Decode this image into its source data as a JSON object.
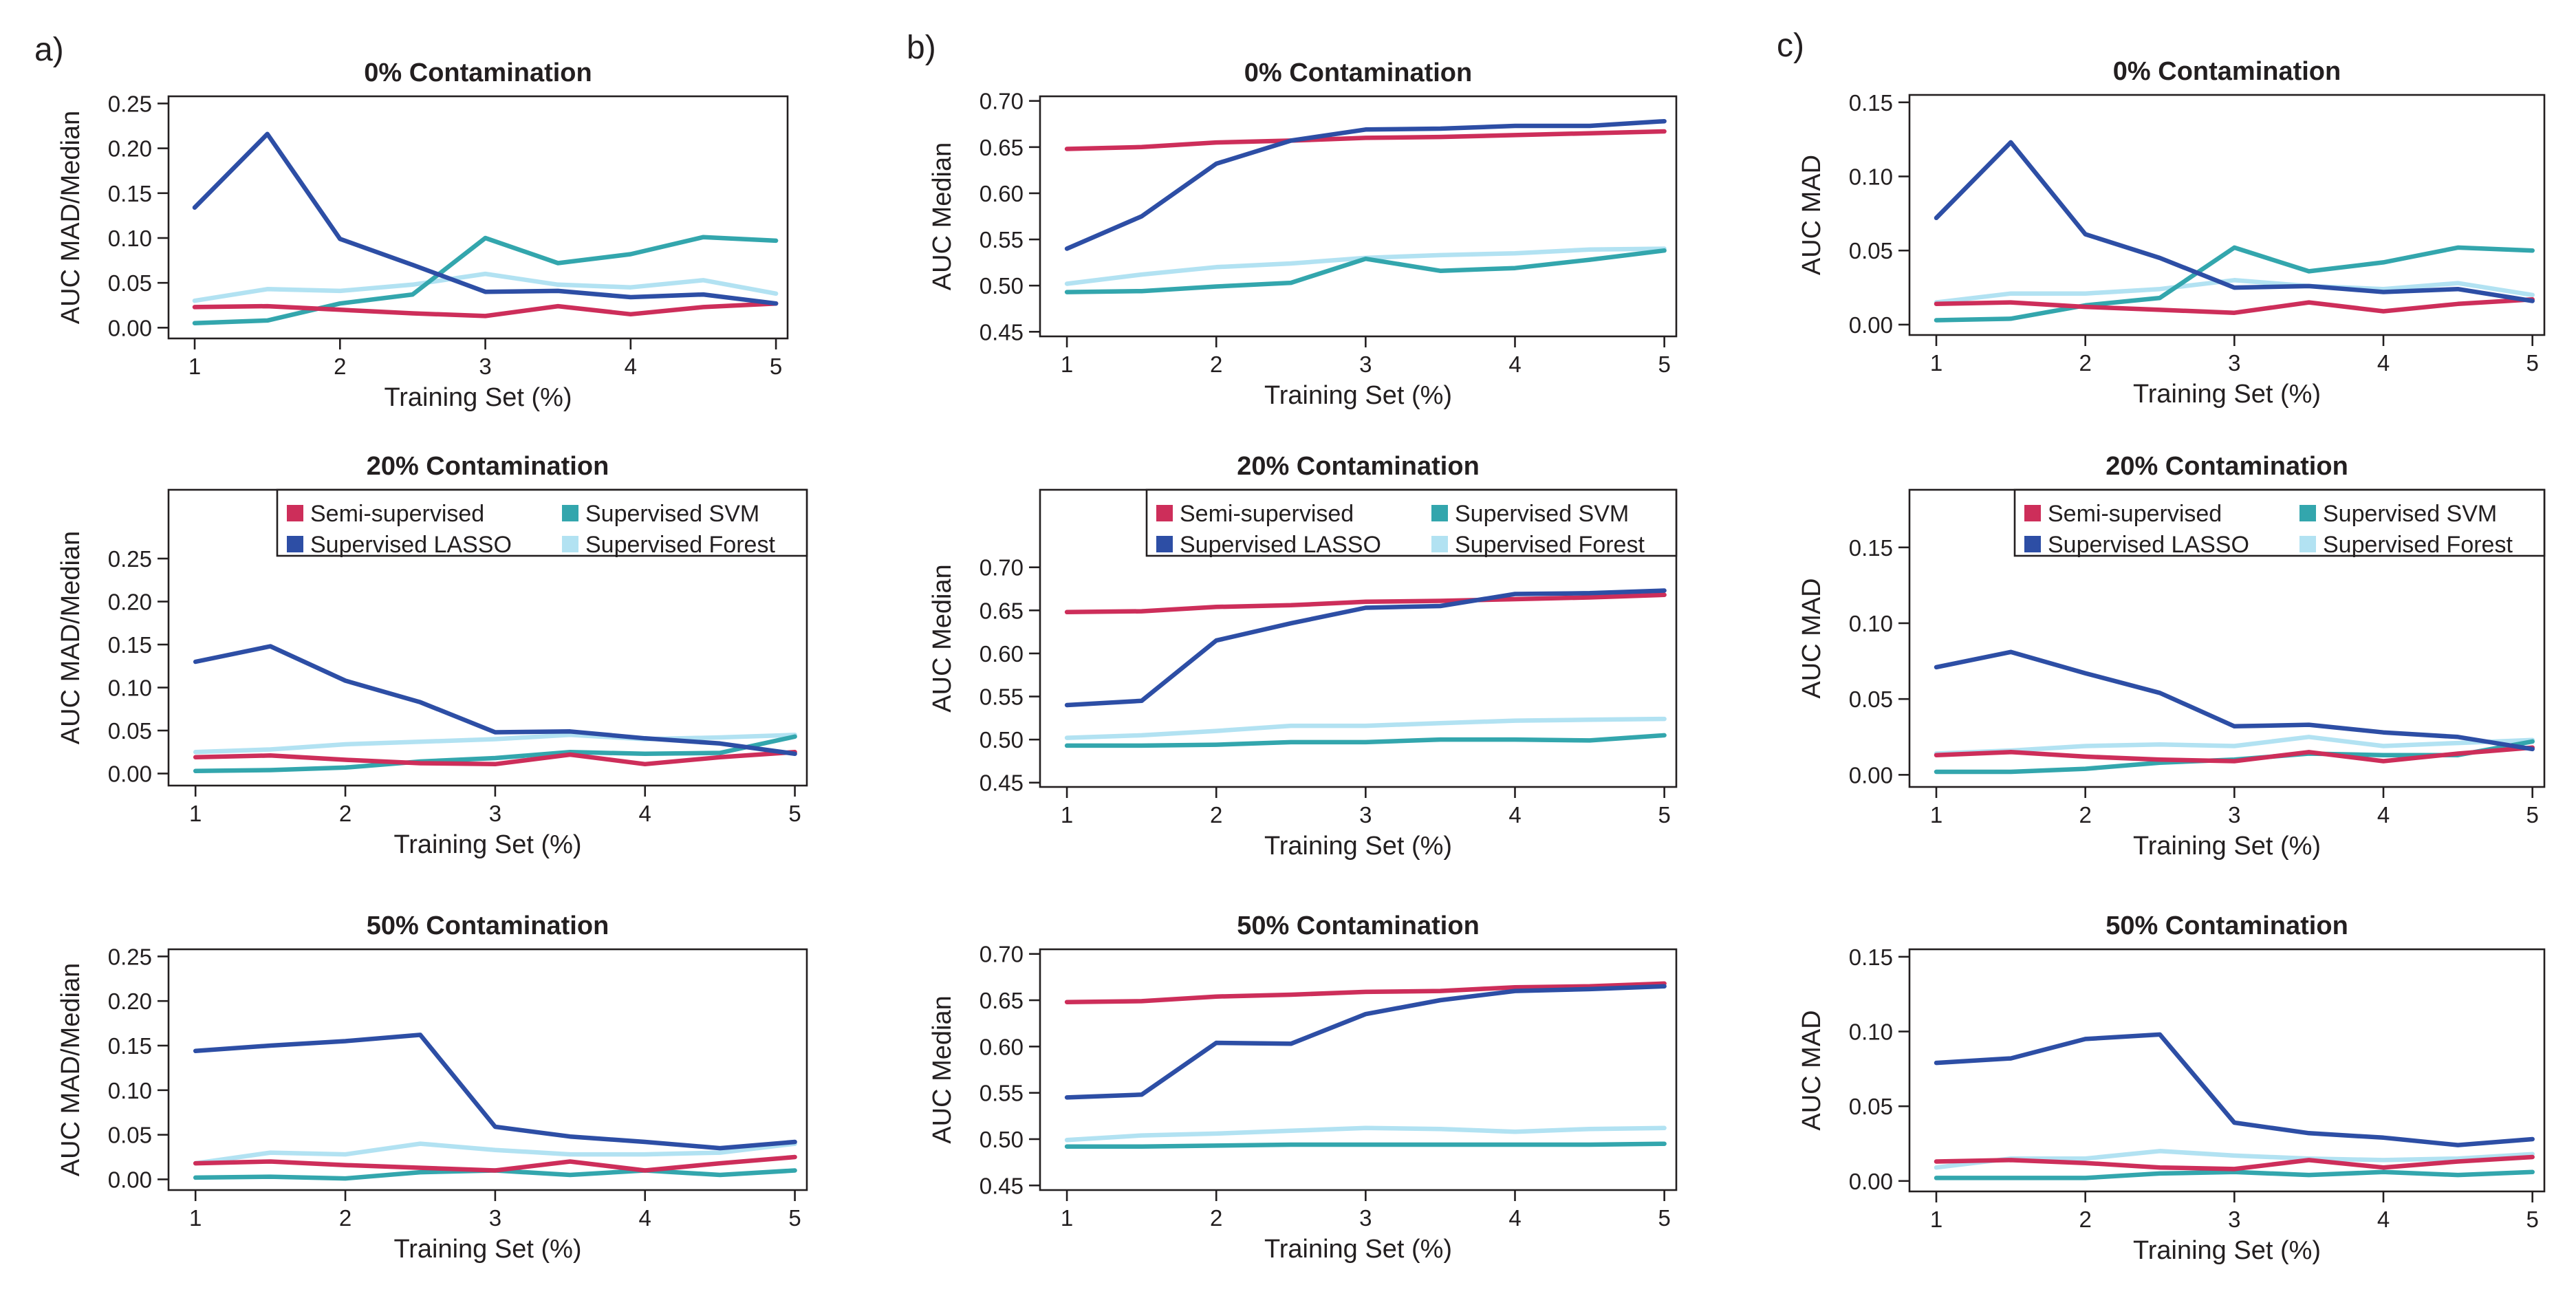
{
  "panel_labels": [
    "a)",
    "b)",
    "c)"
  ],
  "colors": {
    "Semi-supervised": "#cd2e5a",
    "Supervised LASSO": "#2d4ea5",
    "Supervised SVM": "#33a6ad",
    "Supervised Forest": "#b2e2f2"
  },
  "chart_data": [
    {
      "id": "a1",
      "panel": "a)",
      "type": "line",
      "title": "0% Contamination",
      "xlabel": "Training Set (%)",
      "ylabel": "AUC MAD/Median",
      "xlim": [
        0.82,
        5.08
      ],
      "ylim": [
        -0.012,
        0.258
      ],
      "xticks": [
        1,
        2,
        3,
        4,
        5
      ],
      "yticks": [
        0.0,
        0.05,
        0.1,
        0.15,
        0.2,
        0.25
      ],
      "ytick_labels": [
        "0.00",
        "0.05",
        "0.10",
        "0.15",
        "0.20",
        "0.25"
      ],
      "legend": null,
      "x": [
        1,
        1.5,
        2,
        2.5,
        3,
        3.5,
        4,
        4.5,
        5
      ],
      "series": [
        {
          "name": "Supervised Forest",
          "values": [
            0.03,
            0.043,
            0.041,
            0.048,
            0.06,
            0.048,
            0.045,
            0.053,
            0.038
          ]
        },
        {
          "name": "Supervised SVM",
          "values": [
            0.005,
            0.008,
            0.027,
            0.037,
            0.1,
            0.072,
            0.082,
            0.101,
            0.097
          ]
        },
        {
          "name": "Semi-supervised",
          "values": [
            0.023,
            0.024,
            0.02,
            0.016,
            0.013,
            0.024,
            0.015,
            0.023,
            0.027
          ]
        },
        {
          "name": "Supervised LASSO",
          "values": [
            0.134,
            0.216,
            0.099,
            0.07,
            0.04,
            0.041,
            0.034,
            0.037,
            0.027
          ]
        }
      ]
    },
    {
      "id": "b1",
      "panel": "b)",
      "type": "line",
      "title": "0% Contamination",
      "xlabel": "Training Set (%)",
      "ylabel": "AUC Median",
      "xlim": [
        0.82,
        5.08
      ],
      "ylim": [
        0.445,
        0.705
      ],
      "xticks": [
        1,
        2,
        3,
        4,
        5
      ],
      "yticks": [
        0.45,
        0.5,
        0.55,
        0.6,
        0.65,
        0.7
      ],
      "ytick_labels": [
        "0.45",
        "0.50",
        "0.55",
        "0.60",
        "0.65",
        "0.70"
      ],
      "legend": null,
      "x": [
        1,
        1.5,
        2,
        2.5,
        3,
        3.5,
        4,
        4.5,
        5
      ],
      "series": [
        {
          "name": "Supervised Forest",
          "values": [
            0.502,
            0.512,
            0.52,
            0.524,
            0.53,
            0.533,
            0.535,
            0.539,
            0.54
          ]
        },
        {
          "name": "Supervised SVM",
          "values": [
            0.493,
            0.494,
            0.499,
            0.503,
            0.529,
            0.516,
            0.519,
            0.528,
            0.538
          ]
        },
        {
          "name": "Semi-supervised",
          "values": [
            0.648,
            0.65,
            0.655,
            0.657,
            0.66,
            0.661,
            0.663,
            0.665,
            0.667
          ]
        },
        {
          "name": "Supervised LASSO",
          "values": [
            0.54,
            0.575,
            0.632,
            0.657,
            0.669,
            0.67,
            0.673,
            0.673,
            0.678
          ]
        }
      ]
    },
    {
      "id": "c1",
      "panel": "c)",
      "type": "line",
      "title": "0% Contamination",
      "xlabel": "Training Set (%)",
      "ylabel": "AUC MAD",
      "xlim": [
        0.82,
        5.08
      ],
      "ylim": [
        -0.007,
        0.155
      ],
      "xticks": [
        1,
        2,
        3,
        4,
        5
      ],
      "yticks": [
        0.0,
        0.05,
        0.1,
        0.15
      ],
      "ytick_labels": [
        "0.00",
        "0.05",
        "0.10",
        "0.15"
      ],
      "legend": null,
      "x": [
        1,
        1.5,
        2,
        2.5,
        3,
        3.5,
        4,
        4.5,
        5
      ],
      "series": [
        {
          "name": "Supervised Forest",
          "values": [
            0.015,
            0.021,
            0.021,
            0.024,
            0.03,
            0.026,
            0.024,
            0.028,
            0.02
          ]
        },
        {
          "name": "Supervised SVM",
          "values": [
            0.003,
            0.004,
            0.013,
            0.018,
            0.052,
            0.036,
            0.042,
            0.052,
            0.05
          ]
        },
        {
          "name": "Semi-supervised",
          "values": [
            0.014,
            0.015,
            0.012,
            0.01,
            0.008,
            0.015,
            0.009,
            0.014,
            0.017
          ]
        },
        {
          "name": "Supervised LASSO",
          "values": [
            0.072,
            0.123,
            0.061,
            0.045,
            0.025,
            0.026,
            0.022,
            0.024,
            0.016
          ]
        }
      ]
    },
    {
      "id": "a2",
      "panel": "a)",
      "type": "line",
      "title": "20% Contamination",
      "xlabel": "Training Set (%)",
      "ylabel": "AUC MAD/Median",
      "xlim": [
        0.82,
        5.08
      ],
      "ylim": [
        -0.014,
        0.33
      ],
      "xticks": [
        1,
        2,
        3,
        4,
        5
      ],
      "yticks": [
        0.0,
        0.05,
        0.1,
        0.15,
        0.2,
        0.25
      ],
      "ytick_labels": [
        "0.00",
        "0.05",
        "0.10",
        "0.15",
        "0.20",
        "0.25"
      ],
      "legend": {
        "position": "top-right",
        "entries": [
          [
            "Semi-supervised",
            "Supervised SVM"
          ],
          [
            "Supervised LASSO",
            "Supervised Forest"
          ]
        ]
      },
      "x": [
        1,
        1.5,
        2,
        2.5,
        3,
        3.5,
        4,
        4.5,
        5
      ],
      "series": [
        {
          "name": "Supervised Forest",
          "values": [
            0.025,
            0.028,
            0.034,
            0.037,
            0.04,
            0.045,
            0.04,
            0.042,
            0.045
          ]
        },
        {
          "name": "Supervised SVM",
          "values": [
            0.003,
            0.004,
            0.007,
            0.014,
            0.018,
            0.025,
            0.023,
            0.024,
            0.043
          ]
        },
        {
          "name": "Semi-supervised",
          "values": [
            0.019,
            0.021,
            0.016,
            0.012,
            0.011,
            0.022,
            0.011,
            0.019,
            0.025
          ]
        },
        {
          "name": "Supervised LASSO",
          "values": [
            0.13,
            0.148,
            0.108,
            0.083,
            0.048,
            0.049,
            0.041,
            0.035,
            0.023
          ]
        }
      ]
    },
    {
      "id": "b2",
      "panel": "b)",
      "type": "line",
      "title": "20% Contamination",
      "xlabel": "Training Set (%)",
      "ylabel": "AUC Median",
      "xlim": [
        0.82,
        5.08
      ],
      "ylim": [
        0.445,
        0.79
      ],
      "xticks": [
        1,
        2,
        3,
        4,
        5
      ],
      "yticks": [
        0.45,
        0.5,
        0.55,
        0.6,
        0.65,
        0.7
      ],
      "ytick_labels": [
        "0.45",
        "0.50",
        "0.55",
        "0.60",
        "0.65",
        "0.70"
      ],
      "legend": {
        "position": "top-right",
        "entries": [
          [
            "Semi-supervised",
            "Supervised SVM"
          ],
          [
            "Supervised LASSO",
            "Supervised Forest"
          ]
        ]
      },
      "x": [
        1,
        1.5,
        2,
        2.5,
        3,
        3.5,
        4,
        4.5,
        5
      ],
      "series": [
        {
          "name": "Supervised Forest",
          "values": [
            0.502,
            0.505,
            0.51,
            0.516,
            0.516,
            0.519,
            0.522,
            0.523,
            0.524
          ]
        },
        {
          "name": "Supervised SVM",
          "values": [
            0.493,
            0.493,
            0.494,
            0.497,
            0.497,
            0.5,
            0.5,
            0.499,
            0.505
          ]
        },
        {
          "name": "Semi-supervised",
          "values": [
            0.648,
            0.649,
            0.654,
            0.656,
            0.66,
            0.661,
            0.663,
            0.665,
            0.668
          ]
        },
        {
          "name": "Supervised LASSO",
          "values": [
            0.54,
            0.545,
            0.615,
            0.635,
            0.653,
            0.655,
            0.669,
            0.67,
            0.673
          ]
        }
      ]
    },
    {
      "id": "c2",
      "panel": "c)",
      "type": "line",
      "title": "20% Contamination",
      "xlabel": "Training Set (%)",
      "ylabel": "AUC MAD",
      "xlim": [
        0.82,
        5.08
      ],
      "ylim": [
        -0.008,
        0.188
      ],
      "xticks": [
        1,
        2,
        3,
        4,
        5
      ],
      "yticks": [
        0.0,
        0.05,
        0.1,
        0.15
      ],
      "ytick_labels": [
        "0.00",
        "0.05",
        "0.10",
        "0.15"
      ],
      "legend": {
        "position": "top-right",
        "entries": [
          [
            "Semi-supervised",
            "Supervised SVM"
          ],
          [
            "Supervised LASSO",
            "Supervised Forest"
          ]
        ]
      },
      "x": [
        1,
        1.5,
        2,
        2.5,
        3,
        3.5,
        4,
        4.5,
        5
      ],
      "series": [
        {
          "name": "Supervised Forest",
          "values": [
            0.014,
            0.016,
            0.019,
            0.02,
            0.019,
            0.025,
            0.019,
            0.021,
            0.023
          ]
        },
        {
          "name": "Supervised SVM",
          "values": [
            0.002,
            0.002,
            0.004,
            0.008,
            0.01,
            0.014,
            0.013,
            0.013,
            0.022
          ]
        },
        {
          "name": "Semi-supervised",
          "values": [
            0.013,
            0.015,
            0.012,
            0.01,
            0.009,
            0.015,
            0.009,
            0.014,
            0.018
          ]
        },
        {
          "name": "Supervised LASSO",
          "values": [
            0.071,
            0.081,
            0.067,
            0.054,
            0.032,
            0.033,
            0.028,
            0.025,
            0.017
          ]
        }
      ]
    },
    {
      "id": "a3",
      "panel": "a)",
      "type": "line",
      "title": "50% Contamination",
      "xlabel": "Training Set (%)",
      "ylabel": "AUC MAD/Median",
      "xlim": [
        0.82,
        5.08
      ],
      "ylim": [
        -0.012,
        0.258
      ],
      "xticks": [
        1,
        2,
        3,
        4,
        5
      ],
      "yticks": [
        0.0,
        0.05,
        0.1,
        0.15,
        0.2,
        0.25
      ],
      "ytick_labels": [
        "0.00",
        "0.05",
        "0.10",
        "0.15",
        "0.20",
        "0.25"
      ],
      "legend": null,
      "x": [
        1,
        1.5,
        2,
        2.5,
        3,
        3.5,
        4,
        4.5,
        5
      ],
      "series": [
        {
          "name": "Supervised Forest",
          "values": [
            0.018,
            0.03,
            0.028,
            0.04,
            0.033,
            0.028,
            0.028,
            0.03,
            0.04
          ]
        },
        {
          "name": "Supervised SVM",
          "values": [
            0.002,
            0.003,
            0.001,
            0.008,
            0.01,
            0.005,
            0.01,
            0.005,
            0.01
          ]
        },
        {
          "name": "Semi-supervised",
          "values": [
            0.018,
            0.02,
            0.016,
            0.013,
            0.01,
            0.02,
            0.01,
            0.018,
            0.025
          ]
        },
        {
          "name": "Supervised LASSO",
          "values": [
            0.144,
            0.15,
            0.155,
            0.162,
            0.059,
            0.048,
            0.042,
            0.035,
            0.042
          ]
        }
      ]
    },
    {
      "id": "b3",
      "panel": "b)",
      "type": "line",
      "title": "50% Contamination",
      "xlabel": "Training Set (%)",
      "ylabel": "AUC Median",
      "xlim": [
        0.82,
        5.08
      ],
      "ylim": [
        0.445,
        0.705
      ],
      "xticks": [
        1,
        2,
        3,
        4,
        5
      ],
      "yticks": [
        0.45,
        0.5,
        0.55,
        0.6,
        0.65,
        0.7
      ],
      "ytick_labels": [
        "0.45",
        "0.50",
        "0.55",
        "0.60",
        "0.65",
        "0.70"
      ],
      "legend": null,
      "x": [
        1,
        1.5,
        2,
        2.5,
        3,
        3.5,
        4,
        4.5,
        5
      ],
      "series": [
        {
          "name": "Supervised Forest",
          "values": [
            0.499,
            0.504,
            0.506,
            0.509,
            0.512,
            0.511,
            0.508,
            0.511,
            0.512
          ]
        },
        {
          "name": "Supervised SVM",
          "values": [
            0.492,
            0.492,
            0.493,
            0.494,
            0.494,
            0.494,
            0.494,
            0.494,
            0.495
          ]
        },
        {
          "name": "Semi-supervised",
          "values": [
            0.648,
            0.649,
            0.654,
            0.656,
            0.659,
            0.66,
            0.664,
            0.665,
            0.668
          ]
        },
        {
          "name": "Supervised LASSO",
          "values": [
            0.545,
            0.548,
            0.604,
            0.603,
            0.635,
            0.65,
            0.66,
            0.662,
            0.665
          ]
        }
      ]
    },
    {
      "id": "c3",
      "panel": "c)",
      "type": "line",
      "title": "50% Contamination",
      "xlabel": "Training Set (%)",
      "ylabel": "AUC MAD",
      "xlim": [
        0.82,
        5.08
      ],
      "ylim": [
        -0.007,
        0.155
      ],
      "xticks": [
        1,
        2,
        3,
        4,
        5
      ],
      "yticks": [
        0.0,
        0.05,
        0.1,
        0.15
      ],
      "ytick_labels": [
        "0.00",
        "0.05",
        "0.10",
        "0.15"
      ],
      "legend": null,
      "x": [
        1,
        1.5,
        2,
        2.5,
        3,
        3.5,
        4,
        4.5,
        5
      ],
      "series": [
        {
          "name": "Supervised Forest",
          "values": [
            0.009,
            0.015,
            0.015,
            0.02,
            0.017,
            0.015,
            0.014,
            0.015,
            0.018
          ]
        },
        {
          "name": "Supervised SVM",
          "values": [
            0.002,
            0.002,
            0.002,
            0.005,
            0.006,
            0.004,
            0.006,
            0.004,
            0.006
          ]
        },
        {
          "name": "Semi-supervised",
          "values": [
            0.013,
            0.014,
            0.012,
            0.009,
            0.008,
            0.014,
            0.009,
            0.013,
            0.016
          ]
        },
        {
          "name": "Supervised LASSO",
          "values": [
            0.079,
            0.082,
            0.095,
            0.098,
            0.039,
            0.032,
            0.029,
            0.024,
            0.028
          ]
        }
      ]
    }
  ]
}
